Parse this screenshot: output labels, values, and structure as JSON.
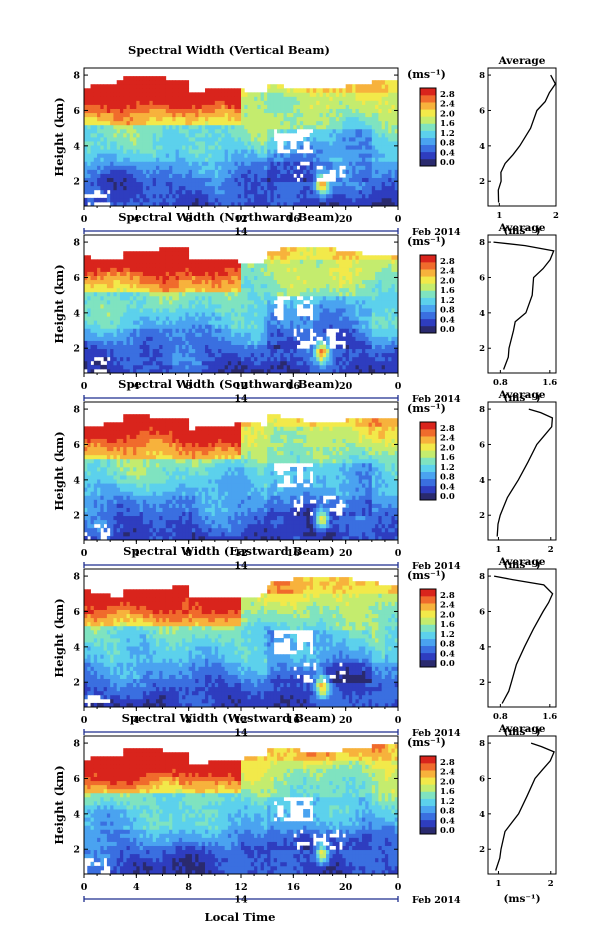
{
  "figure": {
    "date_label": "Feb 2014",
    "day_label": "14",
    "xlabel_bottom": "Local Time",
    "x_ticks": [
      "0",
      "4",
      "8",
      "12",
      "16",
      "20",
      "0"
    ],
    "y_ticks": [
      "2",
      "4",
      "6",
      "8"
    ],
    "ylabel": "Height (km)",
    "colorbar_unit": "(ms⁻¹)",
    "colorbar_ticks": [
      "0.0",
      "0.4",
      "0.8",
      "1.2",
      "1.6",
      "2.0",
      "2.4",
      "2.8"
    ],
    "profile_title": "Average",
    "profile_xlabel": "(ms⁻¹)",
    "palette": [
      "#2a2a6e",
      "#2e3dbf",
      "#3a6fe0",
      "#4aa3f0",
      "#5cd1ec",
      "#7fe3c0",
      "#c4ec6e",
      "#f2e94a",
      "#f7b23c",
      "#f06b2c",
      "#d9241c"
    ]
  },
  "chart_data": [
    {
      "type": "heatmap",
      "title": "Spectral Width (Vertical Beam)",
      "xlabel": "Local Time",
      "ylabel": "Height (km)",
      "xlim": [
        0,
        24
      ],
      "ylim": [
        0.6,
        8.4
      ],
      "colorbar": {
        "label": "(ms⁻¹)",
        "range": [
          0.0,
          2.8
        ]
      },
      "mean_profile": {
        "title": "Average",
        "xlabel": "(ms⁻¹)",
        "xticks": [
          "1",
          "2"
        ],
        "xlim": [
          0.8,
          2.0
        ],
        "height": [
          0.8,
          1.5,
          2.0,
          2.5,
          3.0,
          3.5,
          4.0,
          5.0,
          6.0,
          6.5,
          7.0,
          7.5,
          8.0
        ],
        "value": [
          1.0,
          1.0,
          1.05,
          1.05,
          1.1,
          1.25,
          1.35,
          1.55,
          1.65,
          1.8,
          1.9,
          2.0,
          1.9
        ]
      }
    },
    {
      "type": "heatmap",
      "title": "Spectral Width (Northward Beam)",
      "xlabel": "Local Time",
      "ylabel": "Height (km)",
      "xlim": [
        0,
        24
      ],
      "ylim": [
        0.6,
        8.4
      ],
      "colorbar": {
        "label": "(ms⁻¹)",
        "range": [
          0.0,
          2.8
        ]
      },
      "mean_profile": {
        "title": "Average",
        "xlabel": "(ms⁻¹)",
        "xticks": [
          "0.8",
          "1.6"
        ],
        "xlim": [
          0.6,
          1.7
        ],
        "height": [
          0.8,
          1.5,
          2.0,
          3.0,
          3.5,
          4.0,
          5.0,
          6.0,
          6.5,
          7.0,
          7.5,
          7.8,
          8.0
        ],
        "value": [
          0.85,
          0.95,
          0.95,
          1.0,
          1.05,
          1.2,
          1.3,
          1.35,
          1.5,
          1.6,
          1.65,
          1.2,
          0.7
        ]
      }
    },
    {
      "type": "heatmap",
      "title": "Spectral Width (Southward Beam)",
      "xlabel": "Local Time",
      "ylabel": "Height (km)",
      "xlim": [
        0,
        24
      ],
      "ylim": [
        0.6,
        8.4
      ],
      "colorbar": {
        "label": "(ms⁻¹)",
        "range": [
          0.0,
          2.8
        ]
      },
      "mean_profile": {
        "title": "Average",
        "xlabel": "(ms⁻¹)",
        "xticks": [
          "1",
          "2"
        ],
        "xlim": [
          0.8,
          2.1
        ],
        "height": [
          0.8,
          1.5,
          2.0,
          3.0,
          4.0,
          5.0,
          6.0,
          6.5,
          7.0,
          7.5,
          7.8,
          8.0
        ],
        "value": [
          0.95,
          1.0,
          1.05,
          1.15,
          1.4,
          1.55,
          1.75,
          1.9,
          2.0,
          2.05,
          1.8,
          1.6
        ]
      }
    },
    {
      "type": "heatmap",
      "title": "Spectral Width (Eastward Beam)",
      "xlabel": "Local Time",
      "ylabel": "Height (km)",
      "xlim": [
        0,
        24
      ],
      "ylim": [
        0.6,
        8.4
      ],
      "colorbar": {
        "label": "(ms⁻¹)",
        "range": [
          0.0,
          2.8
        ]
      },
      "mean_profile": {
        "title": "Average",
        "xlabel": "(ms⁻¹)",
        "xticks": [
          "0.8",
          "1.6"
        ],
        "xlim": [
          0.6,
          1.7
        ],
        "height": [
          0.8,
          1.5,
          2.0,
          3.0,
          4.0,
          5.0,
          6.0,
          6.5,
          7.0,
          7.5,
          7.8,
          8.0
        ],
        "value": [
          0.85,
          0.95,
          1.0,
          1.05,
          1.2,
          1.35,
          1.5,
          1.6,
          1.65,
          1.5,
          1.0,
          0.7
        ]
      }
    },
    {
      "type": "heatmap",
      "title": "Spectral Width (Westward Beam)",
      "xlabel": "Local Time",
      "ylabel": "Height (km)",
      "xlim": [
        0,
        24
      ],
      "ylim": [
        0.6,
        8.4
      ],
      "colorbar": {
        "label": "(ms⁻¹)",
        "range": [
          0.0,
          2.8
        ]
      },
      "mean_profile": {
        "title": "Average",
        "xlabel": "(ms⁻¹)",
        "xticks": [
          "1",
          "2"
        ],
        "xlim": [
          0.8,
          2.1
        ],
        "height": [
          0.8,
          1.5,
          2.0,
          3.0,
          4.0,
          5.0,
          6.0,
          6.5,
          7.0,
          7.5,
          7.8,
          8.0
        ],
        "value": [
          0.95,
          1.0,
          1.05,
          1.15,
          1.4,
          1.55,
          1.7,
          1.85,
          2.0,
          2.05,
          1.8,
          1.6
        ]
      }
    }
  ]
}
